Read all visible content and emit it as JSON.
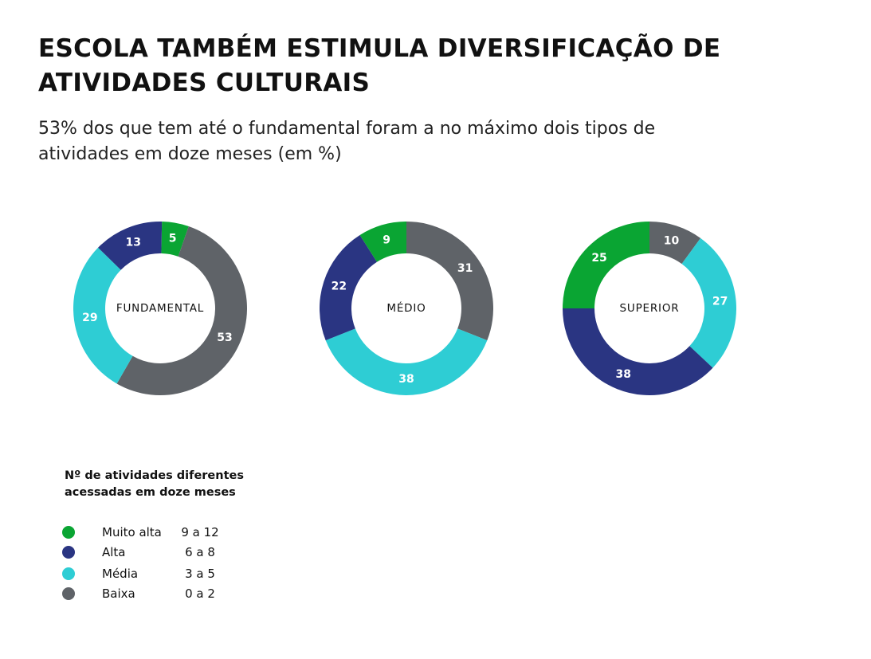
{
  "title_lines": [
    "ESCOLA TAMBÉM ESTIMULA DIVERSIFICAÇÃO DE",
    "ATIVIDADES CULTURAIS"
  ],
  "subtitle_lines": [
    "53% dos que tem até o fundamental foram a no máximo dois tipos de",
    "atividades em doze meses (em %)"
  ],
  "colors": {
    "muito_alta": "#0aa533",
    "alta": "#2a3582",
    "media": "#2ecdd4",
    "baixa": "#5f6368"
  },
  "chart_data": [
    {
      "type": "pie",
      "variant": "donut",
      "center_label": "FUNDAMENTAL",
      "segments": [
        {
          "category": "Muito alta",
          "value": 5
        },
        {
          "category": "Baixa",
          "value": 53
        },
        {
          "category": "Média",
          "value": 29
        },
        {
          "category": "Alta",
          "value": 13
        }
      ]
    },
    {
      "type": "pie",
      "variant": "donut",
      "center_label": "MÉDIO",
      "segments": [
        {
          "category": "Baixa",
          "value": 31
        },
        {
          "category": "Média",
          "value": 38
        },
        {
          "category": "Alta",
          "value": 22
        },
        {
          "category": "Muito alta",
          "value": 9
        }
      ]
    },
    {
      "type": "pie",
      "variant": "donut",
      "center_label": "SUPERIOR",
      "segments": [
        {
          "category": "Baixa",
          "value": 10
        },
        {
          "category": "Média",
          "value": 27
        },
        {
          "category": "Alta",
          "value": 38
        },
        {
          "category": "Muito alta",
          "value": 25
        }
      ]
    }
  ],
  "legend": {
    "title_lines": [
      "Nº de atividades diferentes",
      "acessadas em doze meses"
    ],
    "items": [
      {
        "label": "Muito alta",
        "range": "9 a 12",
        "color_key": "muito_alta"
      },
      {
        "label": "Alta",
        "range": "6 a 8",
        "color_key": "alta"
      },
      {
        "label": "Média",
        "range": "3 a 5",
        "color_key": "media"
      },
      {
        "label": "Baixa",
        "range": "0 a 2",
        "color_key": "baixa"
      }
    ]
  }
}
